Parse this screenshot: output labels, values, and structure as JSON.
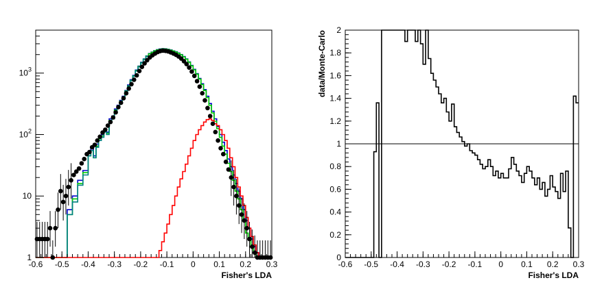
{
  "chart_data": [
    {
      "type": "histogram",
      "xlabel": "Fisher's LDA",
      "ylabel": "",
      "xlim": [
        -0.6,
        0.3
      ],
      "ylim": [
        1,
        5000
      ],
      "yscale": "log",
      "x_ticks": [
        "-0.6",
        "-0.5",
        "-0.4",
        "-0.3",
        "-0.2",
        "-0.1",
        "0",
        "0.1",
        "0.2",
        "0.3"
      ],
      "y_ticks": [
        {
          "base": "10",
          "exp": "3",
          "value": 1000
        },
        {
          "base": "10",
          "exp": "2",
          "value": 100
        },
        {
          "base": "10",
          "exp": "",
          "value": 10
        },
        {
          "base": "1",
          "exp": "",
          "value": 1
        }
      ],
      "colors": {
        "data": "#000000",
        "blue": "#0000cc",
        "green": "#00cc00",
        "teal": "#008080",
        "red": "#ff0000"
      },
      "series": [
        {
          "style": "points",
          "color": "data",
          "x": [
            -0.595,
            -0.585,
            -0.575,
            -0.565,
            -0.555,
            -0.545,
            -0.535,
            -0.525,
            -0.515,
            -0.505,
            -0.495,
            -0.485,
            -0.475,
            -0.465,
            -0.455,
            -0.445,
            -0.435,
            -0.425,
            -0.415,
            -0.405,
            -0.395,
            -0.385,
            -0.375,
            -0.365,
            -0.355,
            -0.345,
            -0.335,
            -0.325,
            -0.315,
            -0.305,
            -0.295,
            -0.285,
            -0.275,
            -0.265,
            -0.255,
            -0.245,
            -0.235,
            -0.225,
            -0.215,
            -0.205,
            -0.195,
            -0.185,
            -0.175,
            -0.165,
            -0.155,
            -0.145,
            -0.135,
            -0.125,
            -0.115,
            -0.105,
            -0.095,
            -0.085,
            -0.075,
            -0.065,
            -0.055,
            -0.045,
            -0.035,
            -0.025,
            -0.015,
            -0.005,
            0.005,
            0.015,
            0.025,
            0.035,
            0.045,
            0.055,
            0.065,
            0.075,
            0.085,
            0.095,
            0.105,
            0.115,
            0.125,
            0.135,
            0.145,
            0.155,
            0.165,
            0.175,
            0.185,
            0.195,
            0.205,
            0.215,
            0.225,
            0.235,
            0.245,
            0.255,
            0.265,
            0.275,
            0.285,
            0.295
          ],
          "y": [
            2,
            2,
            2,
            2,
            2,
            3,
            1,
            3,
            6,
            12,
            8,
            10,
            14,
            18,
            22,
            25,
            28,
            34,
            40,
            48,
            52,
            62,
            68,
            80,
            92,
            108,
            120,
            140,
            160,
            190,
            230,
            280,
            330,
            390,
            470,
            560,
            660,
            780,
            920,
            1080,
            1260,
            1440,
            1620,
            1800,
            1950,
            2080,
            2200,
            2280,
            2320,
            2300,
            2250,
            2170,
            2080,
            1980,
            1860,
            1720,
            1560,
            1400,
            1230,
            1060,
            900,
            740,
            600,
            470,
            360,
            270,
            200,
            150,
            110,
            80,
            60,
            48,
            36,
            27,
            20,
            14,
            10,
            7,
            5,
            4,
            3,
            2,
            1.5,
            1.2,
            1,
            1,
            1,
            1,
            1,
            1
          ]
        },
        {
          "style": "step",
          "color": "blue",
          "x": [
            -0.6,
            -0.59,
            -0.58,
            -0.57,
            -0.56,
            -0.55,
            -0.54,
            -0.53,
            -0.52,
            -0.51,
            -0.5,
            -0.49,
            -0.48,
            -0.47,
            -0.46,
            -0.45,
            -0.44,
            -0.43,
            -0.42,
            -0.41,
            -0.4,
            -0.39,
            -0.38,
            -0.37,
            -0.36,
            -0.35,
            -0.34,
            -0.33,
            -0.32,
            -0.31,
            -0.3,
            -0.29,
            -0.28,
            -0.27,
            -0.26,
            -0.25,
            -0.24,
            -0.23,
            -0.22,
            -0.21,
            -0.2,
            -0.19,
            -0.18,
            -0.17,
            -0.16,
            -0.15,
            -0.14,
            -0.13,
            -0.12,
            -0.11,
            -0.1,
            -0.09,
            -0.08,
            -0.07,
            -0.06,
            -0.05,
            -0.04,
            -0.03,
            -0.02,
            -0.01,
            0,
            0.01,
            0.02,
            0.03,
            0.04,
            0.05,
            0.06,
            0.07,
            0.08,
            0.09,
            0.1,
            0.11,
            0.12,
            0.13,
            0.14,
            0.15,
            0.16,
            0.17,
            0.18,
            0.19,
            0.2,
            0.21,
            0.22,
            0.23,
            0.24,
            0.25,
            0.26,
            0.27,
            0.28,
            0.29
          ],
          "y": [
            1,
            1,
            1,
            1,
            1,
            1,
            1,
            1,
            1,
            1,
            1,
            1,
            6,
            6,
            10,
            10,
            18,
            18,
            26,
            26,
            50,
            60,
            45,
            70,
            90,
            100,
            120,
            110,
            180,
            200,
            260,
            300,
            360,
            420,
            520,
            640,
            780,
            920,
            1120,
            1300,
            1500,
            1700,
            1900,
            2080,
            2200,
            2320,
            2400,
            2460,
            2500,
            2480,
            2440,
            2380,
            2300,
            2220,
            2120,
            2000,
            1860,
            1700,
            1520,
            1330,
            1150,
            980,
            820,
            670,
            540,
            420,
            320,
            240,
            180,
            135,
            100,
            75,
            55,
            40,
            30,
            22,
            16,
            12,
            9,
            6,
            4,
            3,
            2,
            1.5,
            1.2,
            1,
            1,
            1,
            1,
            1
          ]
        },
        {
          "style": "step",
          "color": "green",
          "x": [
            -0.6,
            -0.59,
            -0.58,
            -0.57,
            -0.56,
            -0.55,
            -0.54,
            -0.53,
            -0.52,
            -0.51,
            -0.5,
            -0.49,
            -0.48,
            -0.47,
            -0.46,
            -0.45,
            -0.44,
            -0.43,
            -0.42,
            -0.41,
            -0.4,
            -0.39,
            -0.38,
            -0.37,
            -0.36,
            -0.35,
            -0.34,
            -0.33,
            -0.32,
            -0.31,
            -0.3,
            -0.29,
            -0.28,
            -0.27,
            -0.26,
            -0.25,
            -0.24,
            -0.23,
            -0.22,
            -0.21,
            -0.2,
            -0.19,
            -0.18,
            -0.17,
            -0.16,
            -0.15,
            -0.14,
            -0.13,
            -0.12,
            -0.11,
            -0.1,
            -0.09,
            -0.08,
            -0.07,
            -0.06,
            -0.05,
            -0.04,
            -0.03,
            -0.02,
            -0.01,
            0,
            0.01,
            0.02,
            0.03,
            0.04,
            0.05,
            0.06,
            0.07,
            0.08,
            0.09,
            0.1,
            0.11,
            0.12,
            0.13,
            0.14,
            0.15,
            0.16,
            0.17,
            0.18,
            0.19,
            0.2,
            0.21,
            0.22,
            0.23,
            0.24,
            0.25,
            0.26,
            0.27,
            0.28,
            0.29
          ],
          "y": [
            1,
            1,
            1,
            1,
            1,
            1,
            1,
            1,
            1,
            1,
            1,
            1,
            5,
            5,
            9,
            9,
            16,
            16,
            24,
            24,
            45,
            55,
            42,
            65,
            85,
            95,
            115,
            105,
            170,
            190,
            250,
            290,
            350,
            410,
            510,
            620,
            760,
            900,
            1100,
            1280,
            1480,
            1680,
            1880,
            2060,
            2180,
            2300,
            2380,
            2440,
            2480,
            2460,
            2420,
            2360,
            2280,
            2200,
            2100,
            1980,
            1840,
            1680,
            1500,
            1310,
            1130,
            960,
            800,
            650,
            520,
            400,
            300,
            225,
            165,
            125,
            90,
            65,
            48,
            34,
            25,
            18,
            12,
            9,
            6,
            4,
            2.5,
            2,
            1.5,
            1.2,
            1,
            1,
            1,
            1,
            1,
            1
          ]
        },
        {
          "style": "step",
          "color": "teal",
          "x": [
            -0.49,
            -0.48,
            -0.47,
            -0.46,
            -0.45,
            -0.44,
            -0.43,
            -0.42,
            -0.41,
            -0.4,
            -0.39,
            -0.38,
            -0.37,
            -0.36,
            -0.35,
            -0.34,
            -0.33,
            -0.32,
            -0.31,
            -0.3,
            -0.29,
            -0.28,
            -0.27,
            -0.26,
            -0.25,
            -0.24,
            -0.23,
            -0.22,
            -0.21,
            -0.2,
            -0.19,
            -0.18
          ],
          "y": [
            1,
            5,
            5,
            8,
            8,
            15,
            15,
            22,
            22,
            45,
            55,
            42,
            62,
            80,
            90,
            110,
            100,
            165,
            180,
            240,
            280,
            340,
            400,
            500,
            610,
            750,
            890,
            1080,
            1260,
            1460,
            1660,
            1860
          ]
        },
        {
          "style": "step",
          "color": "red",
          "x": [
            -0.6,
            -0.2,
            -0.19,
            -0.18,
            -0.17,
            -0.16,
            -0.15,
            -0.14,
            -0.13,
            -0.12,
            -0.11,
            -0.1,
            -0.09,
            -0.08,
            -0.07,
            -0.06,
            -0.05,
            -0.04,
            -0.03,
            -0.02,
            -0.01,
            0,
            0.01,
            0.02,
            0.03,
            0.04,
            0.05,
            0.06,
            0.07,
            0.08,
            0.09,
            0.1,
            0.11,
            0.12,
            0.13,
            0.14,
            0.15,
            0.16,
            0.17,
            0.18,
            0.19,
            0.2,
            0.21,
            0.22,
            0.23,
            0.24,
            0.25,
            0.26,
            0.27,
            0.28,
            0.29
          ],
          "y": [
            1,
            1,
            1,
            1,
            1,
            1,
            1,
            1,
            1.3,
            1.8,
            2.5,
            3.5,
            5,
            7,
            10,
            14,
            19,
            25,
            33,
            45,
            60,
            80,
            100,
            120,
            140,
            160,
            175,
            180,
            170,
            150,
            140,
            120,
            100,
            80,
            60,
            42,
            30,
            20,
            14,
            10,
            7,
            4.5,
            3,
            2.2,
            1.6,
            1.2,
            1,
            1,
            1,
            1,
            1
          ]
        }
      ]
    },
    {
      "type": "histogram",
      "xlabel": "Fisher's LDA",
      "ylabel": "data/Monte-Carlo",
      "xlim": [
        -0.6,
        0.3
      ],
      "ylim": [
        0,
        2
      ],
      "x_ticks": [
        "-0.6",
        "-0.5",
        "-0.4",
        "-0.3",
        "-0.2",
        "-0.1",
        "0",
        "0.1",
        "0.2",
        "0.3"
      ],
      "y_ticks": [
        "0",
        "0.2",
        "0.4",
        "0.6",
        "0.8",
        "1",
        "1.2",
        "1.4",
        "1.6",
        "1.8",
        "2"
      ],
      "reference_line": 1,
      "series": [
        {
          "style": "step",
          "color": "#000000",
          "x": [
            -0.6,
            -0.59,
            -0.58,
            -0.57,
            -0.56,
            -0.55,
            -0.54,
            -0.53,
            -0.52,
            -0.51,
            -0.5,
            -0.49,
            -0.48,
            -0.47,
            -0.46,
            -0.45,
            -0.44,
            -0.43,
            -0.42,
            -0.41,
            -0.4,
            -0.39,
            -0.38,
            -0.37,
            -0.36,
            -0.35,
            -0.34,
            -0.33,
            -0.32,
            -0.31,
            -0.3,
            -0.29,
            -0.28,
            -0.27,
            -0.26,
            -0.25,
            -0.24,
            -0.23,
            -0.22,
            -0.21,
            -0.2,
            -0.19,
            -0.18,
            -0.17,
            -0.16,
            -0.15,
            -0.14,
            -0.13,
            -0.12,
            -0.11,
            -0.1,
            -0.09,
            -0.08,
            -0.07,
            -0.06,
            -0.05,
            -0.04,
            -0.03,
            -0.02,
            -0.01,
            0,
            0.01,
            0.02,
            0.03,
            0.04,
            0.05,
            0.06,
            0.07,
            0.08,
            0.09,
            0.1,
            0.11,
            0.12,
            0.13,
            0.14,
            0.15,
            0.16,
            0.17,
            0.18,
            0.19,
            0.2,
            0.21,
            0.22,
            0.23,
            0.24,
            0.25,
            0.26,
            0.27,
            0.28,
            0.29
          ],
          "y": [
            0,
            0,
            0,
            0,
            0,
            0,
            0,
            0,
            0,
            0,
            0,
            0.93,
            1.36,
            0,
            2,
            2,
            2,
            2,
            2,
            2,
            2,
            2,
            2,
            1.9,
            2,
            2,
            2,
            1.9,
            2,
            1.88,
            1.7,
            2,
            1.75,
            1.62,
            1.56,
            1.5,
            1.44,
            1.36,
            1.4,
            1.28,
            1.2,
            1.35,
            1.15,
            1.1,
            1.06,
            1.02,
            0.98,
            1.0,
            0.94,
            0.92,
            0.9,
            0.86,
            0.82,
            0.78,
            0.8,
            0.86,
            0.8,
            0.72,
            0.76,
            0.7,
            0.74,
            0.7,
            0.7,
            0.78,
            0.88,
            0.82,
            0.76,
            0.72,
            0.66,
            0.74,
            0.8,
            0.76,
            0.7,
            0.64,
            0.7,
            0.6,
            0.66,
            0.54,
            0.6,
            0.72,
            0.62,
            0.58,
            0.52,
            0.74,
            0.58,
            0.76,
            0.26,
            0,
            1.42,
            1.36
          ]
        }
      ]
    }
  ]
}
